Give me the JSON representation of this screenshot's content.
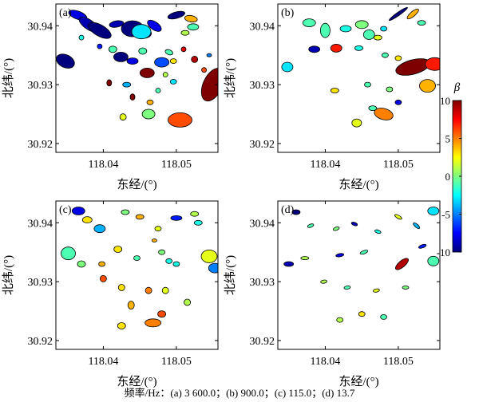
{
  "figure": {
    "caption": "频率/Hz：(a) 3 600.0；(b) 900.0；(c) 115.0；(d) 13.7"
  },
  "colorbar": {
    "label": "β",
    "ticks": [
      10,
      5,
      0,
      -5,
      -10
    ],
    "range": [
      -10,
      10
    ],
    "colormap": [
      "#00007f",
      "#0000ff",
      "#007fff",
      "#00ffff",
      "#7fff7f",
      "#ffff00",
      "#ff7f00",
      "#ff0000",
      "#7f0000"
    ]
  },
  "axes_common": {
    "xlabel": "东经/(°)",
    "ylabel": "北纬/(°)",
    "xticks": [
      "118.04",
      "118.05"
    ],
    "yticks": [
      "30.94",
      "30.93",
      "30.92"
    ],
    "xlim": [
      118.0335,
      118.0557
    ],
    "ylim": [
      30.9185,
      30.9437
    ]
  },
  "chart_data": [
    {
      "type": "scatter",
      "panel": "(a)",
      "marker": "ellipse",
      "points": [
        {
          "x": 118.0365,
          "y": 30.9418,
          "beta": -8
        },
        {
          "x": 118.038,
          "y": 30.9402,
          "beta": -9
        },
        {
          "x": 118.0395,
          "y": 30.9392,
          "beta": -10
        },
        {
          "x": 118.0418,
          "y": 30.9403,
          "beta": -9
        },
        {
          "x": 118.044,
          "y": 30.9395,
          "beta": -10
        },
        {
          "x": 118.0456,
          "y": 30.9387,
          "beta": -7
        },
        {
          "x": 118.0452,
          "y": 30.939,
          "beta": -3
        },
        {
          "x": 118.047,
          "y": 30.94,
          "beta": -8
        },
        {
          "x": 118.05,
          "y": 30.9418,
          "beta": -10
        },
        {
          "x": 118.052,
          "y": 30.9412,
          "beta": 4
        },
        {
          "x": 118.0523,
          "y": 30.9398,
          "beta": -1
        },
        {
          "x": 118.0512,
          "y": 30.9388,
          "beta": 1
        },
        {
          "x": 118.0348,
          "y": 30.934,
          "beta": -10
        },
        {
          "x": 118.0413,
          "y": 30.936,
          "beta": -1
        },
        {
          "x": 118.0424,
          "y": 30.9347,
          "beta": -10
        },
        {
          "x": 118.044,
          "y": 30.934,
          "beta": -8
        },
        {
          "x": 118.0454,
          "y": 30.9357,
          "beta": -1
        },
        {
          "x": 118.048,
          "y": 30.9338,
          "beta": -6
        },
        {
          "x": 118.049,
          "y": 30.9355,
          "beta": -1
        },
        {
          "x": 118.046,
          "y": 30.932,
          "beta": 10
        },
        {
          "x": 118.0485,
          "y": 30.9317,
          "beta": 1
        },
        {
          "x": 118.0496,
          "y": 30.934,
          "beta": 3
        },
        {
          "x": 118.0525,
          "y": 30.9343,
          "beta": 9
        },
        {
          "x": 118.0538,
          "y": 30.9325,
          "beta": 6
        },
        {
          "x": 118.0545,
          "y": 30.935,
          "beta": -5
        },
        {
          "x": 118.055,
          "y": 30.93,
          "beta": 10
        },
        {
          "x": 118.0408,
          "y": 30.9303,
          "beta": 10
        },
        {
          "x": 118.0432,
          "y": 30.93,
          "beta": -4
        },
        {
          "x": 118.0496,
          "y": 30.9305,
          "beta": -3
        },
        {
          "x": 118.0475,
          "y": 30.929,
          "beta": -1
        },
        {
          "x": 118.044,
          "y": 30.9279,
          "beta": 10
        },
        {
          "x": 118.0464,
          "y": 30.927,
          "beta": 4
        },
        {
          "x": 118.0427,
          "y": 30.9245,
          "beta": 2
        },
        {
          "x": 118.0462,
          "y": 30.925,
          "beta": 0
        },
        {
          "x": 118.0505,
          "y": 30.924,
          "beta": 6
        },
        {
          "x": 118.037,
          "y": 30.938,
          "beta": -2
        },
        {
          "x": 118.0395,
          "y": 30.9365,
          "beta": -7
        },
        {
          "x": 118.051,
          "y": 30.936,
          "beta": 8
        }
      ]
    },
    {
      "type": "scatter",
      "panel": "(b)",
      "marker": "ellipse",
      "points": [
        {
          "x": 118.0378,
          "y": 30.9405,
          "beta": -1
        },
        {
          "x": 118.04,
          "y": 30.9392,
          "beta": -1
        },
        {
          "x": 118.0428,
          "y": 30.9395,
          "beta": -2
        },
        {
          "x": 118.045,
          "y": 30.9402,
          "beta": 0
        },
        {
          "x": 118.046,
          "y": 30.9385,
          "beta": -1
        },
        {
          "x": 118.0472,
          "y": 30.938,
          "beta": 2
        },
        {
          "x": 118.048,
          "y": 30.9395,
          "beta": -3
        },
        {
          "x": 118.05,
          "y": 30.942,
          "beta": -10
        },
        {
          "x": 118.052,
          "y": 30.942,
          "beta": 4
        },
        {
          "x": 118.0532,
          "y": 30.9405,
          "beta": -1
        },
        {
          "x": 118.0348,
          "y": 30.933,
          "beta": -3
        },
        {
          "x": 118.0385,
          "y": 30.936,
          "beta": -9
        },
        {
          "x": 118.0415,
          "y": 30.9362,
          "beta": 7
        },
        {
          "x": 118.0446,
          "y": 30.9362,
          "beta": -2
        },
        {
          "x": 118.0482,
          "y": 30.935,
          "beta": -1
        },
        {
          "x": 118.05,
          "y": 30.9345,
          "beta": 3
        },
        {
          "x": 118.052,
          "y": 30.933,
          "beta": 10
        },
        {
          "x": 118.055,
          "y": 30.9335,
          "beta": 7
        },
        {
          "x": 118.054,
          "y": 30.9298,
          "beta": 4
        },
        {
          "x": 118.0458,
          "y": 30.93,
          "beta": -1
        },
        {
          "x": 118.0413,
          "y": 30.929,
          "beta": 3
        },
        {
          "x": 118.0488,
          "y": 30.9292,
          "beta": 0
        },
        {
          "x": 118.0465,
          "y": 30.926,
          "beta": -1
        },
        {
          "x": 118.048,
          "y": 30.925,
          "beta": 5
        },
        {
          "x": 118.0443,
          "y": 30.9235,
          "beta": 2
        },
        {
          "x": 118.05,
          "y": 30.927,
          "beta": -8
        }
      ]
    },
    {
      "type": "scatter",
      "panel": "(c)",
      "marker": "ellipse",
      "points": [
        {
          "x": 118.0366,
          "y": 30.942,
          "beta": -8
        },
        {
          "x": 118.0378,
          "y": 30.9405,
          "beta": 3
        },
        {
          "x": 118.0395,
          "y": 30.939,
          "beta": -4
        },
        {
          "x": 118.043,
          "y": 30.9418,
          "beta": 0
        },
        {
          "x": 118.045,
          "y": 30.941,
          "beta": 4
        },
        {
          "x": 118.0475,
          "y": 30.939,
          "beta": 2
        },
        {
          "x": 118.05,
          "y": 30.9408,
          "beta": -7
        },
        {
          "x": 118.0525,
          "y": 30.9415,
          "beta": 1
        },
        {
          "x": 118.053,
          "y": 30.94,
          "beta": -2
        },
        {
          "x": 118.0352,
          "y": 30.9348,
          "beta": -1
        },
        {
          "x": 118.037,
          "y": 30.933,
          "beta": 0
        },
        {
          "x": 118.0398,
          "y": 30.933,
          "beta": 4
        },
        {
          "x": 118.042,
          "y": 30.9355,
          "beta": 3
        },
        {
          "x": 118.0446,
          "y": 30.934,
          "beta": -1
        },
        {
          "x": 118.048,
          "y": 30.935,
          "beta": 0
        },
        {
          "x": 118.047,
          "y": 30.937,
          "beta": 4
        },
        {
          "x": 118.05,
          "y": 30.933,
          "beta": -2
        },
        {
          "x": 118.0545,
          "y": 30.9343,
          "beta": 2
        },
        {
          "x": 118.0553,
          "y": 30.9323,
          "beta": -5
        },
        {
          "x": 118.04,
          "y": 30.9305,
          "beta": 6
        },
        {
          "x": 118.0425,
          "y": 30.929,
          "beta": 3
        },
        {
          "x": 118.0462,
          "y": 30.9285,
          "beta": 5
        },
        {
          "x": 118.0485,
          "y": 30.9285,
          "beta": 2
        },
        {
          "x": 118.0515,
          "y": 30.9265,
          "beta": 1
        },
        {
          "x": 118.0438,
          "y": 30.926,
          "beta": 4
        },
        {
          "x": 118.048,
          "y": 30.9245,
          "beta": 6
        },
        {
          "x": 118.0425,
          "y": 30.9225,
          "beta": 3
        },
        {
          "x": 118.0468,
          "y": 30.923,
          "beta": 5
        },
        {
          "x": 118.049,
          "y": 30.9335,
          "beta": -2
        }
      ]
    },
    {
      "type": "scatter",
      "panel": "(d)",
      "marker": "ellipse",
      "points": [
        {
          "x": 118.036,
          "y": 30.9418,
          "beta": -10
        },
        {
          "x": 118.038,
          "y": 30.9395,
          "beta": -1
        },
        {
          "x": 118.0415,
          "y": 30.939,
          "beta": 0
        },
        {
          "x": 118.044,
          "y": 30.9398,
          "beta": -9
        },
        {
          "x": 118.0472,
          "y": 30.9385,
          "beta": -2
        },
        {
          "x": 118.05,
          "y": 30.941,
          "beta": 2
        },
        {
          "x": 118.0525,
          "y": 30.9395,
          "beta": -4
        },
        {
          "x": 118.0548,
          "y": 30.942,
          "beta": -3
        },
        {
          "x": 118.035,
          "y": 30.933,
          "beta": -9
        },
        {
          "x": 118.0372,
          "y": 30.934,
          "beta": 1
        },
        {
          "x": 118.042,
          "y": 30.9345,
          "beta": -8
        },
        {
          "x": 118.0453,
          "y": 30.935,
          "beta": -1
        },
        {
          "x": 118.0505,
          "y": 30.933,
          "beta": 9
        },
        {
          "x": 118.0533,
          "y": 30.936,
          "beta": -7
        },
        {
          "x": 118.0548,
          "y": 30.9335,
          "beta": -1
        },
        {
          "x": 118.0398,
          "y": 30.93,
          "beta": 1
        },
        {
          "x": 118.043,
          "y": 30.929,
          "beta": -1
        },
        {
          "x": 118.047,
          "y": 30.9285,
          "beta": 2
        },
        {
          "x": 118.051,
          "y": 30.929,
          "beta": 0
        },
        {
          "x": 118.045,
          "y": 30.9245,
          "beta": 3
        },
        {
          "x": 118.048,
          "y": 30.924,
          "beta": -1
        },
        {
          "x": 118.042,
          "y": 30.9235,
          "beta": 1
        }
      ]
    }
  ]
}
